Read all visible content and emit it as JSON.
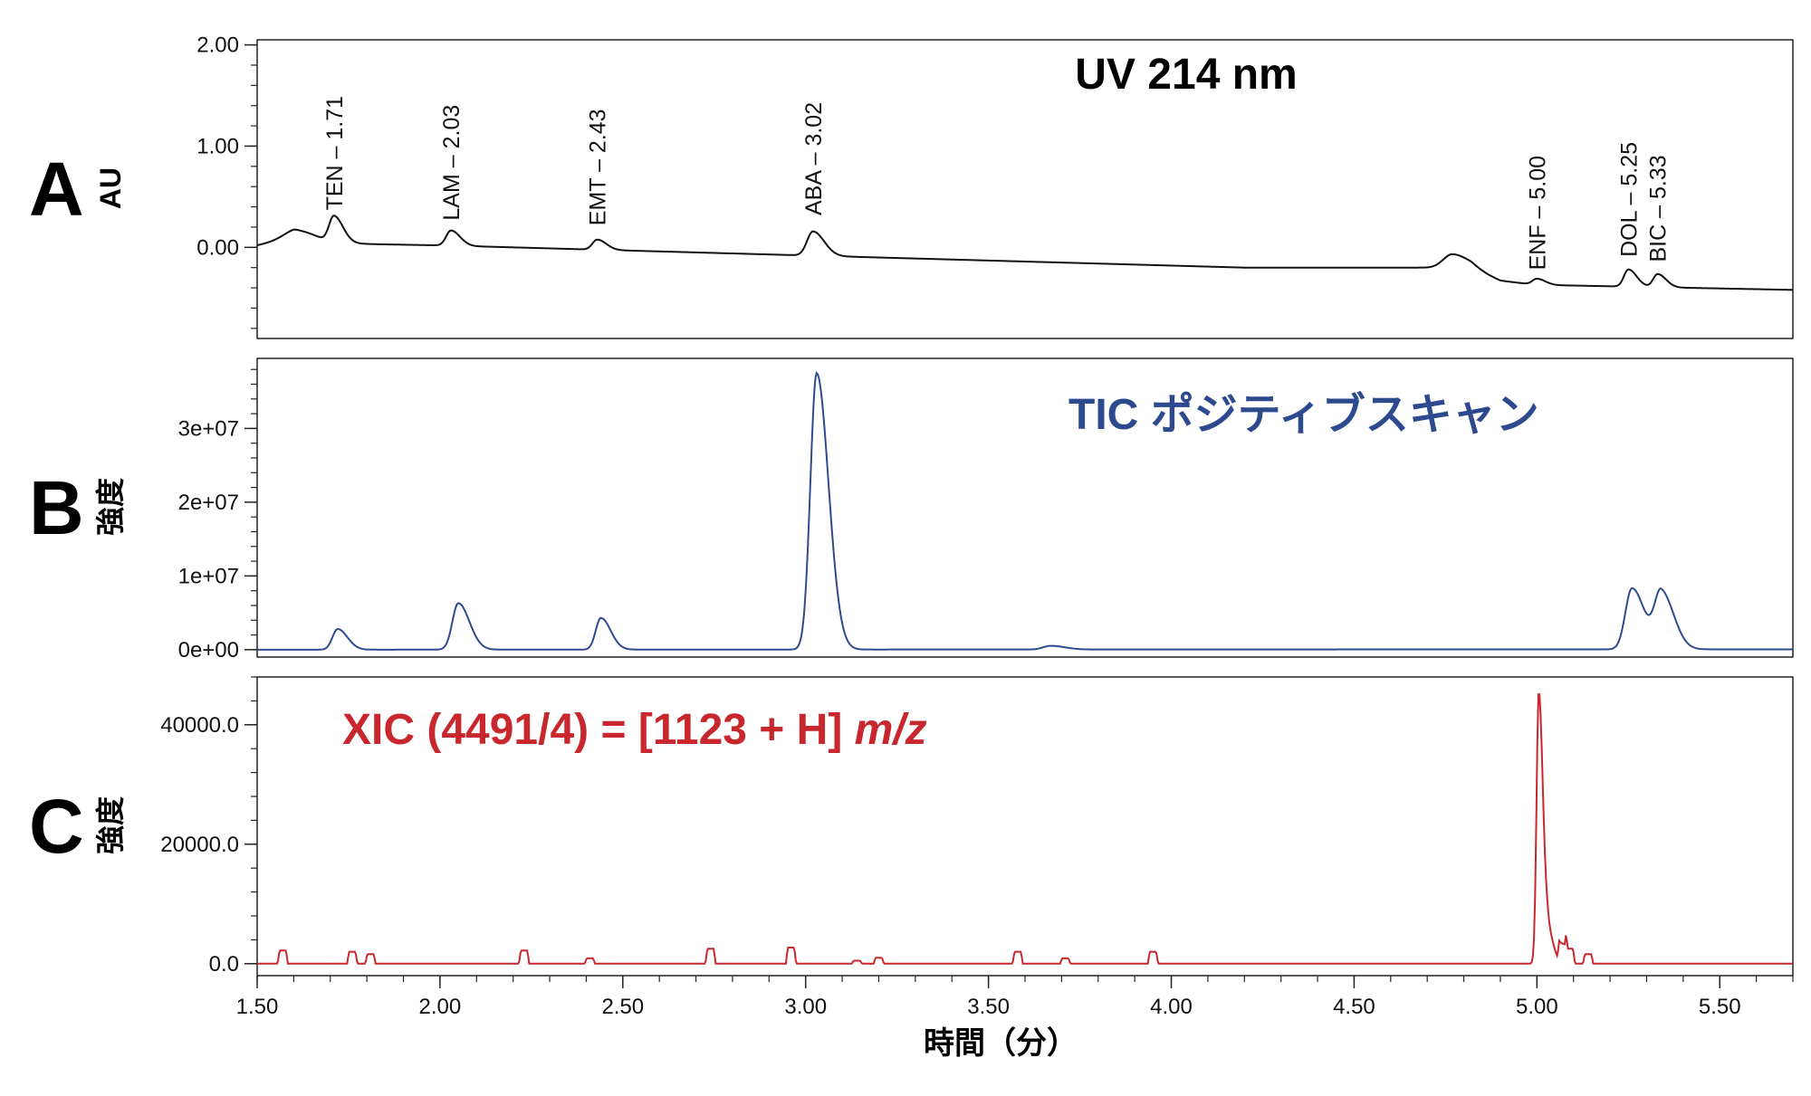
{
  "chart_data": [
    {
      "panel": "A",
      "type": "line",
      "annotation": "UV 214 nm",
      "ylabel": "AU",
      "xlim": [
        1.5,
        5.7
      ],
      "ylim": [
        -0.9,
        2.05
      ],
      "yticks": [
        {
          "v": 2.0,
          "label": "2.00"
        },
        {
          "v": 1.0,
          "label": "1.00"
        },
        {
          "v": 0.0,
          "label": "0.00"
        }
      ],
      "color": "#111111",
      "baseline": [
        [
          1.5,
          0.02
        ],
        [
          1.6,
          0.1
        ],
        [
          1.68,
          0.04
        ],
        [
          2.0,
          0.02
        ],
        [
          2.4,
          -0.02
        ],
        [
          3.0,
          -0.08
        ],
        [
          3.6,
          -0.14
        ],
        [
          4.2,
          -0.2
        ],
        [
          4.74,
          -0.2
        ],
        [
          4.82,
          -0.22
        ],
        [
          4.9,
          -0.33
        ],
        [
          5.0,
          -0.37
        ],
        [
          5.7,
          -0.42
        ]
      ],
      "peaks": [
        [
          1.61,
          0.08,
          0.035
        ],
        [
          1.71,
          0.25,
          0.013
        ],
        [
          2.03,
          0.15,
          0.013
        ],
        [
          2.43,
          0.1,
          0.013
        ],
        [
          3.02,
          0.24,
          0.016
        ],
        [
          4.77,
          0.14,
          0.025
        ],
        [
          5.0,
          0.06,
          0.012
        ],
        [
          5.25,
          0.17,
          0.012
        ],
        [
          5.33,
          0.13,
          0.012
        ]
      ],
      "peak_labels": [
        {
          "x": 1.71,
          "y": 0.33,
          "label": "TEN – 1.71"
        },
        {
          "x": 2.03,
          "y": 0.23,
          "label": "LAM – 2.03"
        },
        {
          "x": 2.43,
          "y": 0.18,
          "label": "EMT – 2.43"
        },
        {
          "x": 3.02,
          "y": 0.28,
          "label": "ABA – 3.02"
        },
        {
          "x": 5.0,
          "y": -0.26,
          "label": "ENF – 5.00"
        },
        {
          "x": 5.25,
          "y": -0.13,
          "label": "DOL – 5.25"
        },
        {
          "x": 5.33,
          "y": -0.18,
          "label": "BIC – 5.33"
        }
      ]
    },
    {
      "panel": "B",
      "type": "line",
      "annotation": "TIC ポジティブスキャン",
      "ylabel": "強度",
      "xlim": [
        1.5,
        5.7
      ],
      "ylim": [
        -1000000,
        39500000
      ],
      "yticks": [
        {
          "v": 30000000,
          "label": "3e+07"
        },
        {
          "v": 20000000,
          "label": "2e+07"
        },
        {
          "v": 10000000,
          "label": "1e+07"
        },
        {
          "v": 0,
          "label": "0e+00"
        }
      ],
      "color": "#2e4a8f",
      "baseline": [
        [
          1.5,
          0
        ],
        [
          5.7,
          50000
        ]
      ],
      "peaks": [
        [
          1.72,
          2800000,
          0.014
        ],
        [
          2.05,
          6300000,
          0.016
        ],
        [
          2.44,
          4300000,
          0.014
        ],
        [
          3.03,
          37500000,
          0.017
        ],
        [
          3.67,
          500000,
          0.02
        ],
        [
          5.26,
          8300000,
          0.018
        ],
        [
          5.34,
          7700000,
          0.018
        ]
      ]
    },
    {
      "panel": "C",
      "type": "line",
      "annotation": "XIC (4491/4) = [1123 + H] ",
      "annotation_italic": "m/z",
      "ylabel": "強度",
      "xlim": [
        1.5,
        5.7
      ],
      "ylim": [
        -2000,
        48000
      ],
      "yticks": [
        {
          "v": 40000,
          "label": "40000.0"
        },
        {
          "v": 20000,
          "label": "20000.0"
        },
        {
          "v": 0,
          "label": "0.0"
        }
      ],
      "xticks": [
        {
          "v": 1.5,
          "label": "1.50"
        },
        {
          "v": 2.0,
          "label": "2.00"
        },
        {
          "v": 2.5,
          "label": "2.50"
        },
        {
          "v": 3.0,
          "label": "3.00"
        },
        {
          "v": 3.5,
          "label": "3.50"
        },
        {
          "v": 4.0,
          "label": "4.00"
        },
        {
          "v": 4.5,
          "label": "4.50"
        },
        {
          "v": 5.0,
          "label": "5.00"
        },
        {
          "v": 5.5,
          "label": "5.50"
        }
      ],
      "xlabel": "時間（分）",
      "color": "#c8272d",
      "baseline": [
        [
          1.5,
          0
        ],
        [
          5.7,
          0
        ]
      ],
      "spikes": [
        [
          1.57,
          2200
        ],
        [
          1.76,
          2000
        ],
        [
          1.81,
          1600
        ],
        [
          2.23,
          2200
        ],
        [
          2.41,
          900
        ],
        [
          2.74,
          2500
        ],
        [
          2.96,
          2700
        ],
        [
          3.14,
          500
        ],
        [
          3.2,
          1000
        ],
        [
          3.58,
          2000
        ],
        [
          3.71,
          900
        ],
        [
          3.95,
          2000
        ],
        [
          5.07,
          3200
        ],
        [
          5.09,
          2500
        ],
        [
          5.14,
          1600
        ]
      ],
      "peaks": [
        [
          5.005,
          45700,
          0.006
        ],
        [
          5.03,
          5200,
          0.008
        ]
      ]
    }
  ]
}
